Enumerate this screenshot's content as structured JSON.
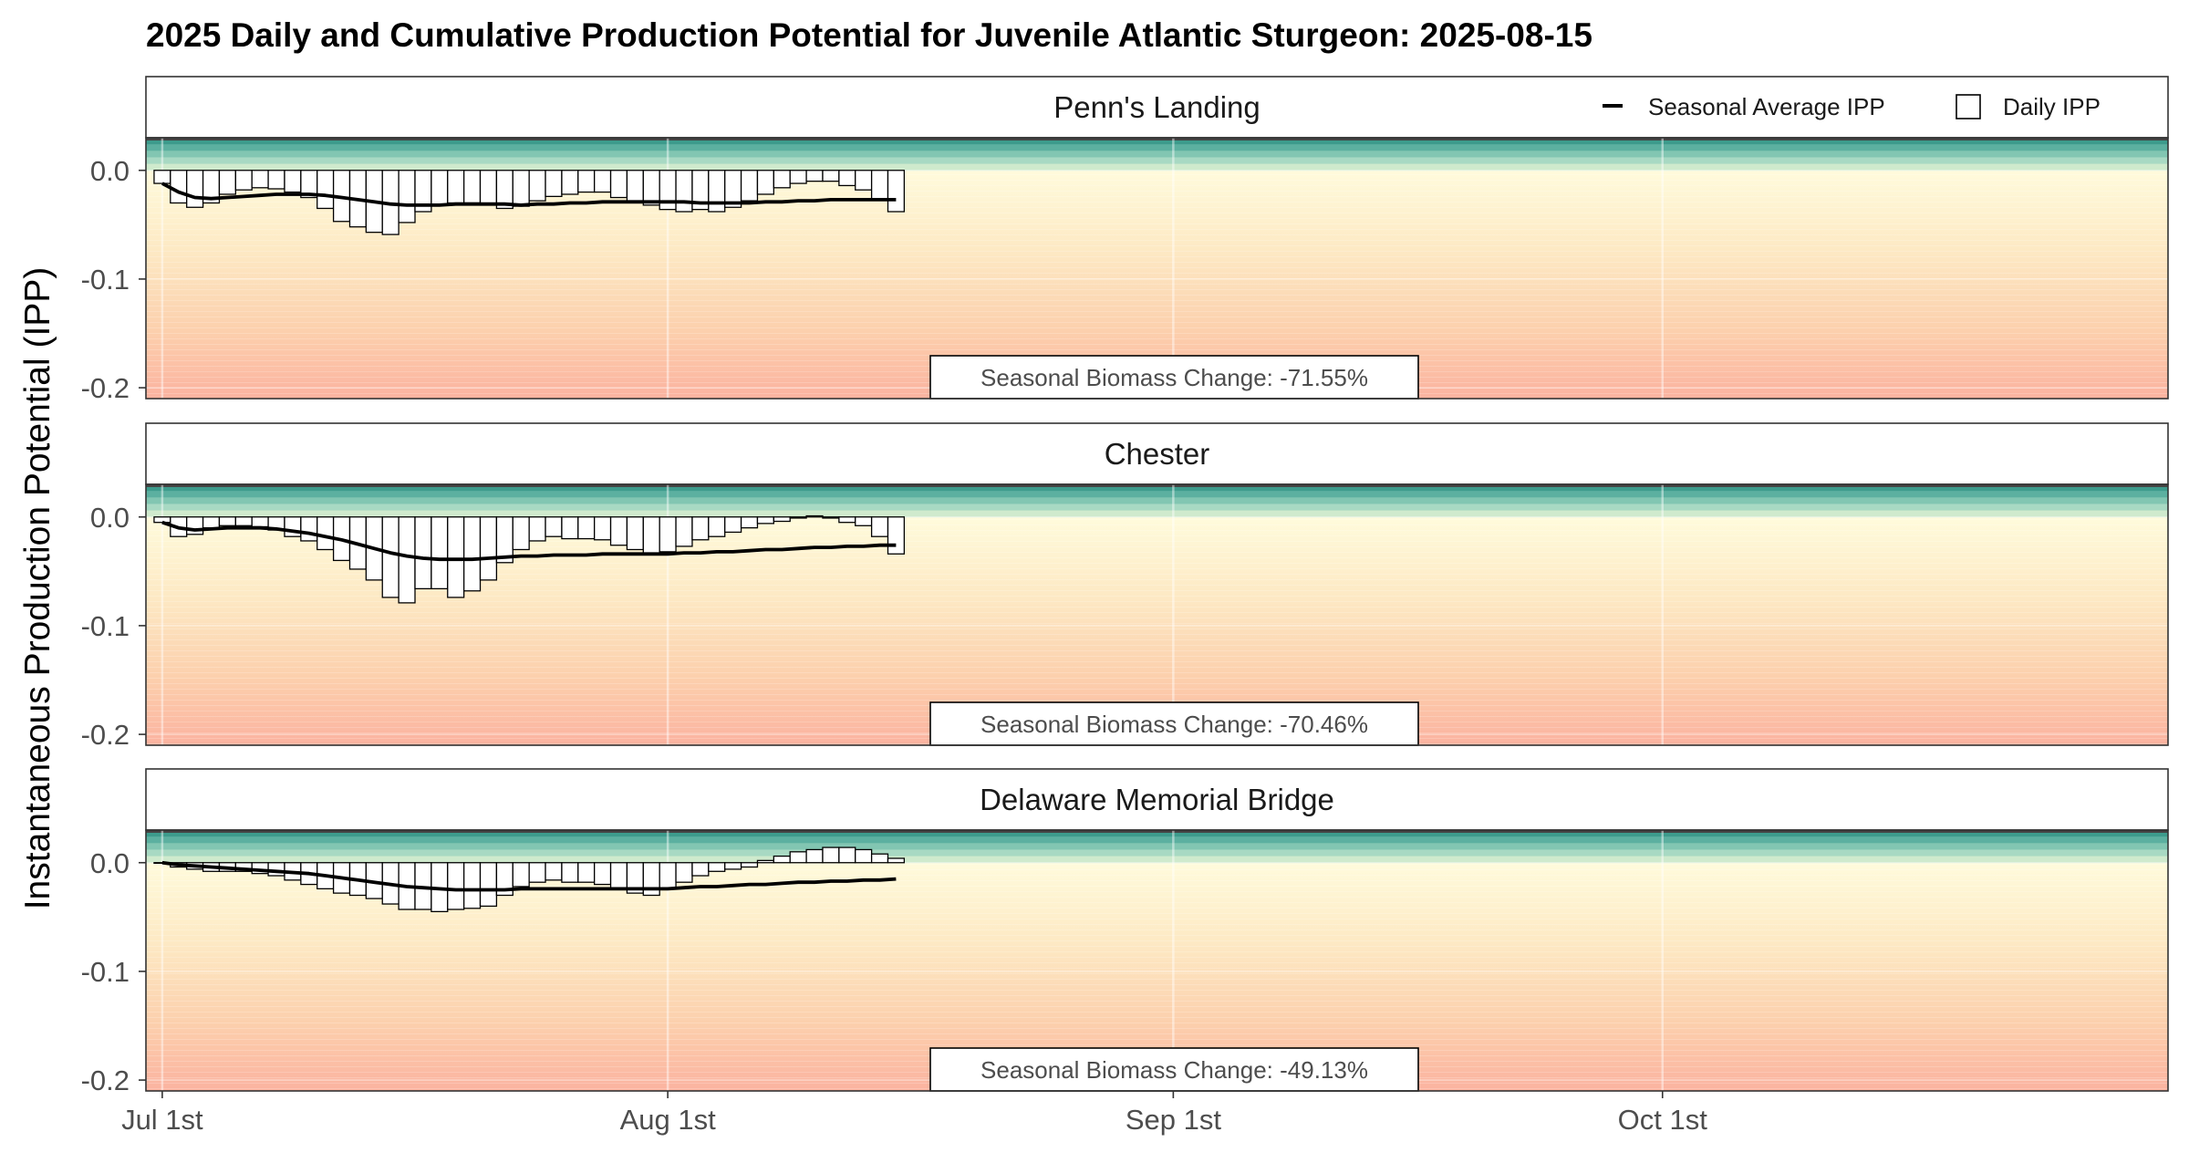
{
  "chart_data": {
    "type": "bar",
    "title": "2025 Daily and Cumulative Production Potential for Juvenile Atlantic Sturgeon: 2025-08-15",
    "ylabel": "Instantaneous Production Potential (IPP)",
    "xlabel": "",
    "x_ticks": [
      "Jul 1st",
      "Aug 1st",
      "Sep 1st",
      "Oct 1st"
    ],
    "x_tick_days": [
      0,
      31,
      62,
      92
    ],
    "xlim_days": [
      -1,
      123
    ],
    "y_ticks": [
      0.0,
      -0.1,
      -0.2
    ],
    "y_tick_labels": [
      "0.0",
      "-0.1",
      "-0.2"
    ],
    "ylim": [
      -0.21,
      0.03
    ],
    "legend": {
      "position": "top-right",
      "line_label": "Seasonal Average IPP",
      "bar_label": "Daily IPP"
    },
    "background": {
      "positive_colors": [
        "#3d9b8c",
        "#5cb0a0",
        "#82c6b2",
        "#a8d9c3",
        "#cfeacd"
      ],
      "negative_gradient": [
        "#fffbdc",
        "#fde9c4",
        "#fcd0ad",
        "#fbb3a0"
      ],
      "series_line_color": "#000000",
      "bar_fill": "#ffffff",
      "bar_stroke": "#000000"
    },
    "x_dates": [
      "2025-07-01",
      "2025-07-02",
      "2025-07-03",
      "2025-07-04",
      "2025-07-05",
      "2025-07-06",
      "2025-07-07",
      "2025-07-08",
      "2025-07-09",
      "2025-07-10",
      "2025-07-11",
      "2025-07-12",
      "2025-07-13",
      "2025-07-14",
      "2025-07-15",
      "2025-07-16",
      "2025-07-17",
      "2025-07-18",
      "2025-07-19",
      "2025-07-20",
      "2025-07-21",
      "2025-07-22",
      "2025-07-23",
      "2025-07-24",
      "2025-07-25",
      "2025-07-26",
      "2025-07-27",
      "2025-07-28",
      "2025-07-29",
      "2025-07-30",
      "2025-07-31",
      "2025-08-01",
      "2025-08-02",
      "2025-08-03",
      "2025-08-04",
      "2025-08-05",
      "2025-08-06",
      "2025-08-07",
      "2025-08-08",
      "2025-08-09",
      "2025-08-10",
      "2025-08-11",
      "2025-08-12",
      "2025-08-13",
      "2025-08-14",
      "2025-08-15"
    ],
    "panels": [
      {
        "name": "Penn's Landing",
        "daily_ipp": [
          -0.012,
          -0.03,
          -0.034,
          -0.03,
          -0.022,
          -0.018,
          -0.016,
          -0.017,
          -0.02,
          -0.025,
          -0.035,
          -0.047,
          -0.052,
          -0.057,
          -0.059,
          -0.048,
          -0.038,
          -0.031,
          -0.03,
          -0.03,
          -0.032,
          -0.035,
          -0.033,
          -0.028,
          -0.024,
          -0.022,
          -0.02,
          -0.02,
          -0.025,
          -0.028,
          -0.032,
          -0.036,
          -0.038,
          -0.036,
          -0.038,
          -0.034,
          -0.028,
          -0.022,
          -0.016,
          -0.012,
          -0.01,
          -0.01,
          -0.014,
          -0.018,
          -0.027,
          -0.038
        ],
        "seasonal_avg": [
          -0.012,
          -0.02,
          -0.025,
          -0.026,
          -0.025,
          -0.024,
          -0.023,
          -0.022,
          -0.022,
          -0.022,
          -0.023,
          -0.025,
          -0.027,
          -0.029,
          -0.031,
          -0.032,
          -0.032,
          -0.032,
          -0.031,
          -0.031,
          -0.031,
          -0.031,
          -0.032,
          -0.031,
          -0.031,
          -0.03,
          -0.03,
          -0.029,
          -0.029,
          -0.029,
          -0.029,
          -0.029,
          -0.029,
          -0.03,
          -0.03,
          -0.03,
          -0.03,
          -0.029,
          -0.029,
          -0.028,
          -0.028,
          -0.027,
          -0.027,
          -0.027,
          -0.027,
          -0.027
        ],
        "annotation": "Seasonal Biomass Change: -71.55%"
      },
      {
        "name": "Chester",
        "daily_ipp": [
          -0.005,
          -0.018,
          -0.016,
          -0.01,
          -0.008,
          -0.008,
          -0.009,
          -0.012,
          -0.018,
          -0.022,
          -0.03,
          -0.04,
          -0.048,
          -0.058,
          -0.074,
          -0.079,
          -0.066,
          -0.066,
          -0.074,
          -0.068,
          -0.058,
          -0.042,
          -0.03,
          -0.022,
          -0.018,
          -0.02,
          -0.02,
          -0.021,
          -0.026,
          -0.03,
          -0.034,
          -0.032,
          -0.027,
          -0.021,
          -0.018,
          -0.014,
          -0.01,
          -0.006,
          -0.004,
          -0.001,
          0.001,
          -0.001,
          -0.005,
          -0.008,
          -0.018,
          -0.034
        ],
        "seasonal_avg": [
          -0.005,
          -0.01,
          -0.012,
          -0.011,
          -0.01,
          -0.01,
          -0.01,
          -0.011,
          -0.013,
          -0.015,
          -0.018,
          -0.021,
          -0.025,
          -0.029,
          -0.033,
          -0.036,
          -0.038,
          -0.039,
          -0.039,
          -0.039,
          -0.038,
          -0.037,
          -0.036,
          -0.036,
          -0.035,
          -0.035,
          -0.035,
          -0.034,
          -0.034,
          -0.034,
          -0.034,
          -0.034,
          -0.033,
          -0.033,
          -0.032,
          -0.032,
          -0.031,
          -0.03,
          -0.03,
          -0.029,
          -0.028,
          -0.028,
          -0.027,
          -0.027,
          -0.026,
          -0.026
        ],
        "annotation": "Seasonal Biomass Change: -70.46%"
      },
      {
        "name": "Delaware Memorial Bridge",
        "daily_ipp": [
          0.0,
          -0.004,
          -0.006,
          -0.008,
          -0.008,
          -0.008,
          -0.01,
          -0.012,
          -0.016,
          -0.02,
          -0.024,
          -0.028,
          -0.03,
          -0.033,
          -0.038,
          -0.043,
          -0.043,
          -0.045,
          -0.043,
          -0.042,
          -0.04,
          -0.03,
          -0.022,
          -0.018,
          -0.016,
          -0.018,
          -0.018,
          -0.02,
          -0.024,
          -0.028,
          -0.03,
          -0.024,
          -0.018,
          -0.012,
          -0.008,
          -0.006,
          -0.004,
          0.002,
          0.006,
          0.01,
          0.012,
          0.014,
          0.014,
          0.012,
          0.008,
          0.004
        ],
        "seasonal_avg": [
          0.0,
          -0.002,
          -0.003,
          -0.004,
          -0.005,
          -0.006,
          -0.007,
          -0.008,
          -0.009,
          -0.01,
          -0.012,
          -0.014,
          -0.016,
          -0.018,
          -0.02,
          -0.022,
          -0.023,
          -0.024,
          -0.025,
          -0.025,
          -0.025,
          -0.025,
          -0.024,
          -0.024,
          -0.024,
          -0.024,
          -0.024,
          -0.024,
          -0.024,
          -0.024,
          -0.024,
          -0.024,
          -0.023,
          -0.022,
          -0.022,
          -0.021,
          -0.02,
          -0.02,
          -0.019,
          -0.018,
          -0.018,
          -0.017,
          -0.017,
          -0.016,
          -0.016,
          -0.015
        ],
        "annotation": "Seasonal Biomass Change: -49.13%"
      }
    ]
  }
}
